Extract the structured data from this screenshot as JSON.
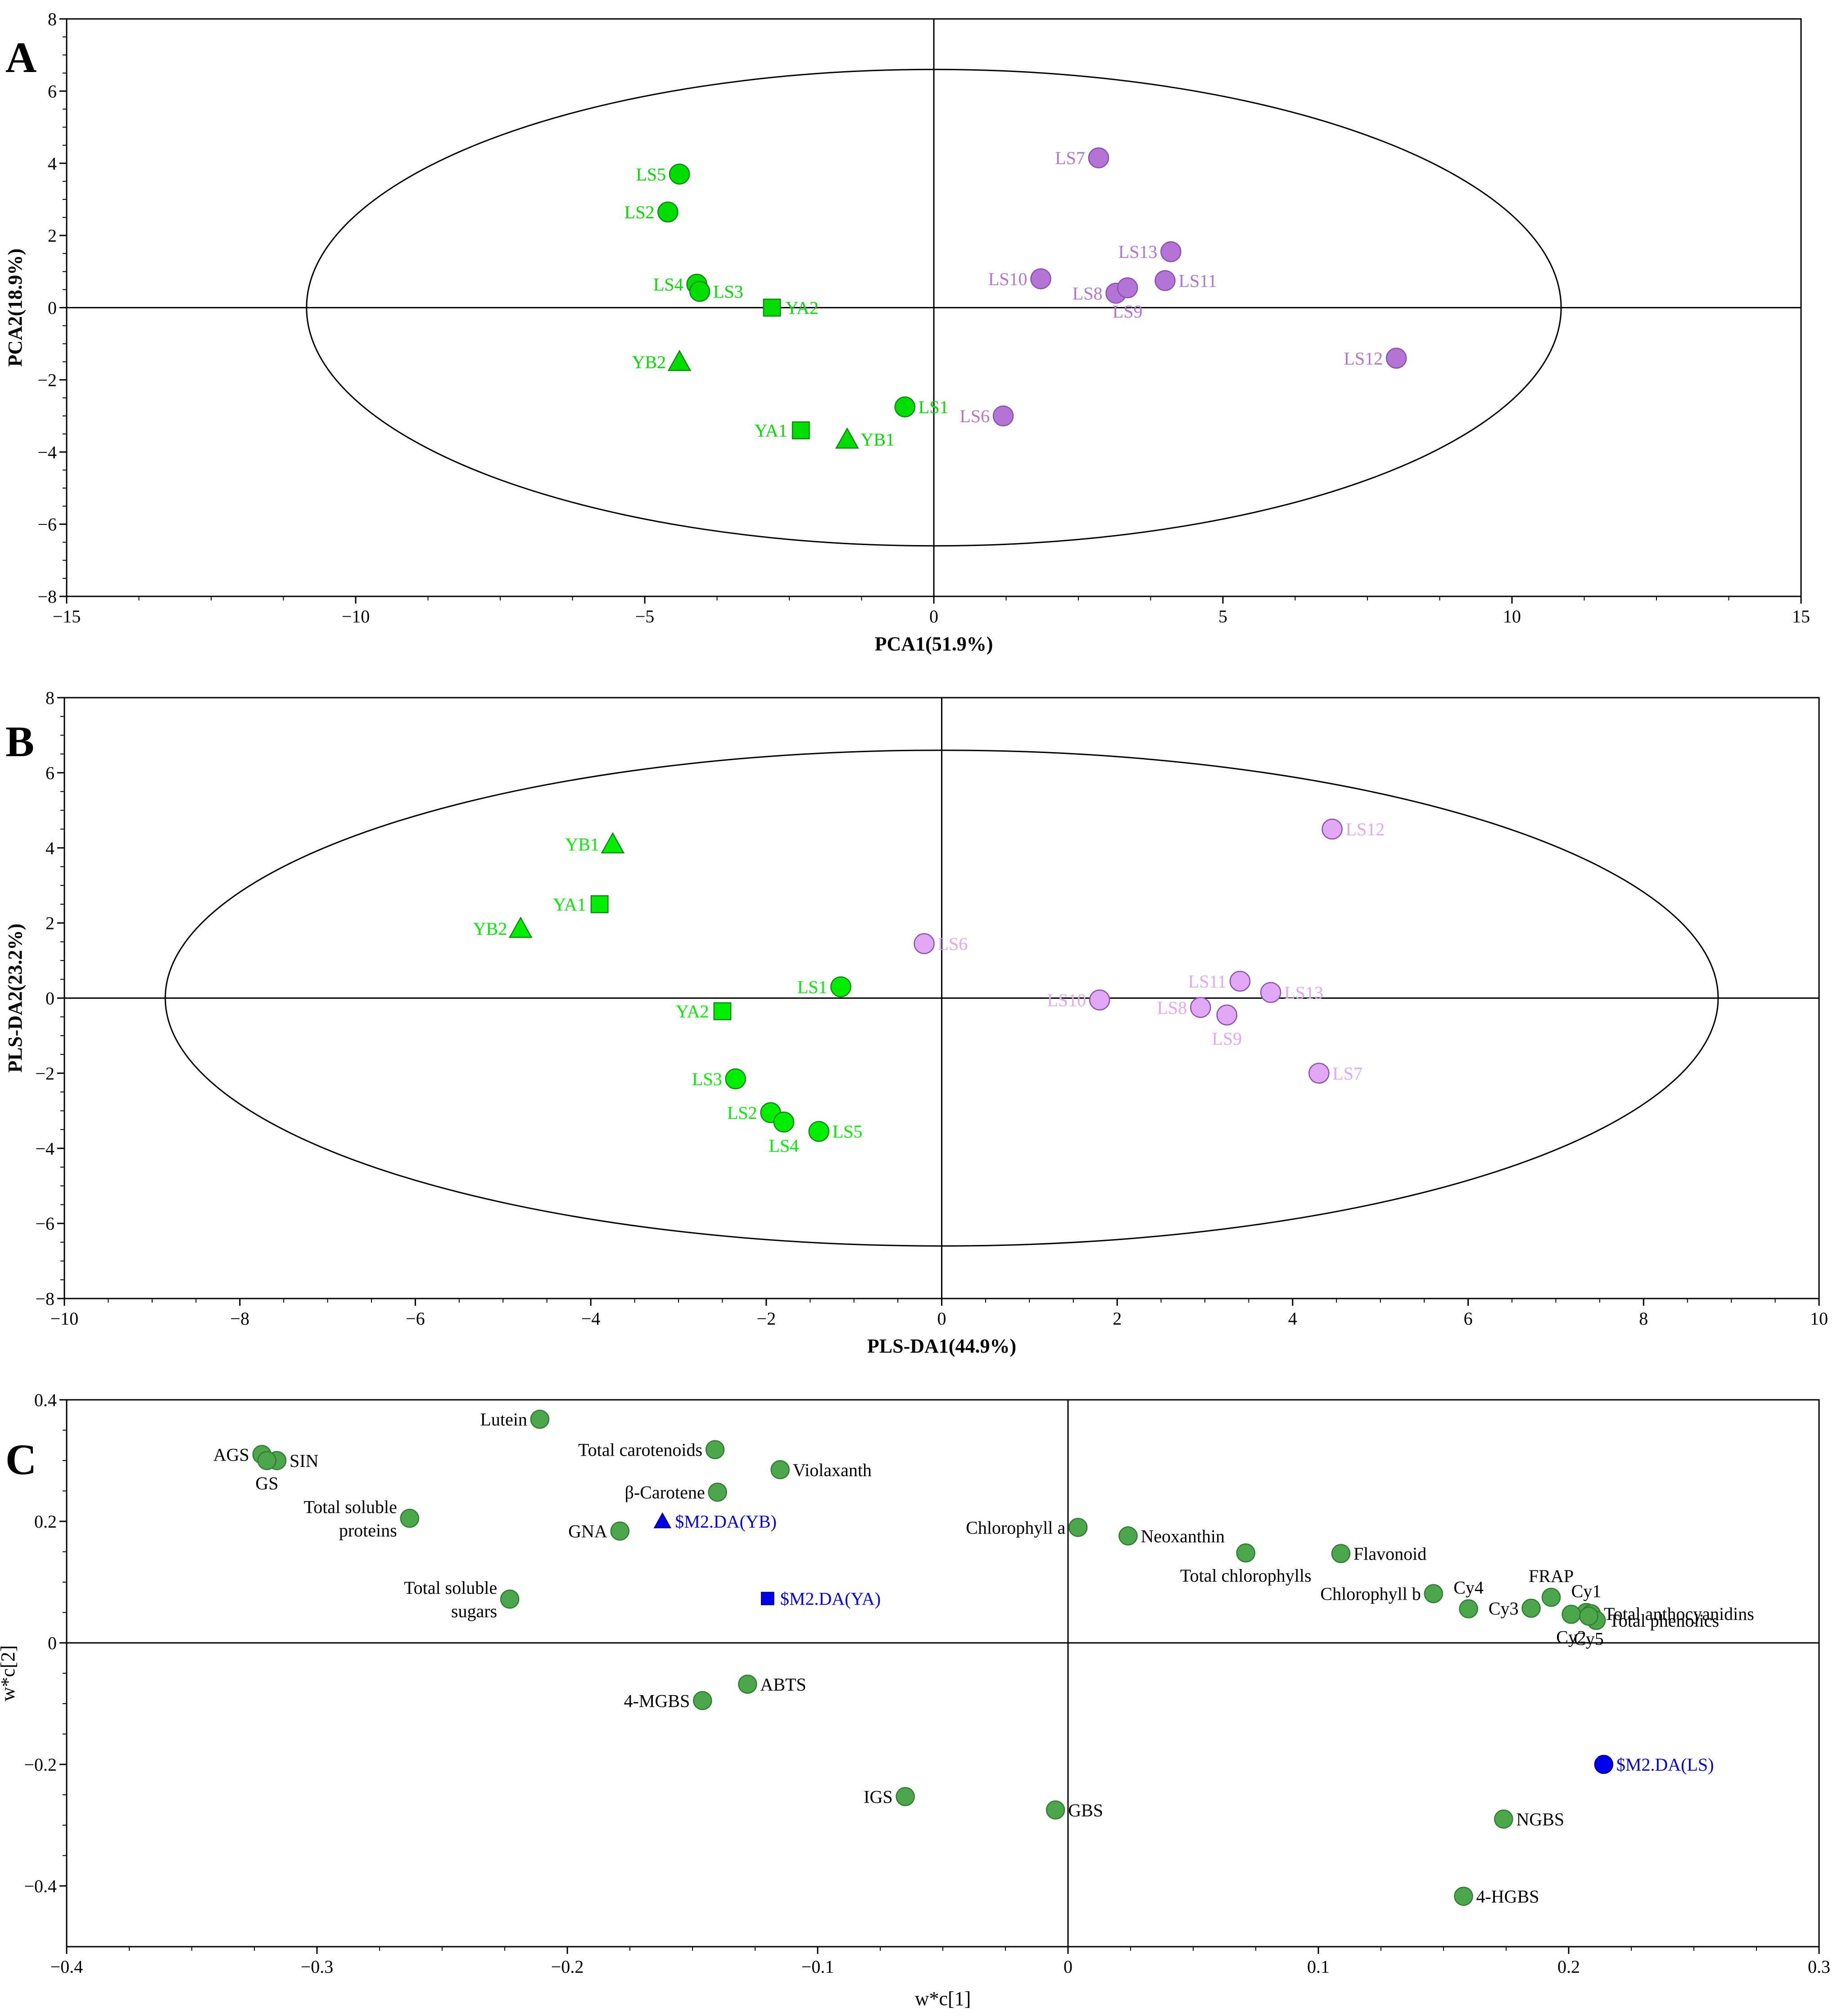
{
  "chart_data": [
    {
      "panel": "A",
      "type": "scatter",
      "xlabel": "PCA1(51.9%)",
      "ylabel": "PCA2(18.9%)",
      "xlim": [
        -15,
        15
      ],
      "ylim": [
        -8,
        8
      ],
      "xticks": [
        -15,
        -10,
        -5,
        0,
        5,
        10,
        15
      ],
      "yticks": [
        -8,
        -6,
        -4,
        -2,
        0,
        2,
        4,
        6,
        8
      ],
      "xtick_labels": [
        "−15",
        "−10",
        "−5",
        "0",
        "5",
        "10",
        "15"
      ],
      "ytick_labels": [
        "−8",
        "−6",
        "−4",
        "−2",
        "0",
        "2",
        "4",
        "6",
        "8"
      ],
      "ellipse": {
        "cx": 0,
        "cy": 0,
        "rx": 10.85,
        "ry": 6.6
      },
      "points": [
        {
          "label": "LS5",
          "x": -4.4,
          "y": 3.7,
          "marker": "circle",
          "color": "#00dd00",
          "label_side": "left"
        },
        {
          "label": "LS2",
          "x": -4.6,
          "y": 2.65,
          "marker": "circle",
          "color": "#00dd00",
          "label_side": "left"
        },
        {
          "label": "LS4",
          "x": -4.1,
          "y": 0.65,
          "marker": "circle",
          "color": "#00dd00",
          "label_side": "left"
        },
        {
          "label": "LS3",
          "x": -4.05,
          "y": 0.45,
          "marker": "circle",
          "color": "#00dd00",
          "label_side": "right"
        },
        {
          "label": "YA2",
          "x": -2.8,
          "y": 0.0,
          "marker": "square",
          "color": "#00dd00",
          "label_side": "right"
        },
        {
          "label": "YB2",
          "x": -4.4,
          "y": -1.5,
          "marker": "triangle",
          "color": "#00dd00",
          "label_side": "left"
        },
        {
          "label": "LS1",
          "x": -0.5,
          "y": -2.75,
          "marker": "circle",
          "color": "#00dd00",
          "label_side": "right"
        },
        {
          "label": "YA1",
          "x": -2.3,
          "y": -3.4,
          "marker": "square",
          "color": "#00dd00",
          "label_side": "left"
        },
        {
          "label": "YB1",
          "x": -1.5,
          "y": -3.65,
          "marker": "triangle",
          "color": "#00dd00",
          "label_side": "right"
        },
        {
          "label": "LS7",
          "x": 2.85,
          "y": 4.15,
          "marker": "circle",
          "color": "#b474d6",
          "label_side": "left"
        },
        {
          "label": "LS13",
          "x": 4.1,
          "y": 1.55,
          "marker": "circle",
          "color": "#b474d6",
          "label_side": "left"
        },
        {
          "label": "LS10",
          "x": 1.85,
          "y": 0.8,
          "marker": "circle",
          "color": "#b474d6",
          "label_side": "left"
        },
        {
          "label": "LS8",
          "x": 3.15,
          "y": 0.4,
          "marker": "circle",
          "color": "#b474d6",
          "label_side": "left"
        },
        {
          "label": "LS9",
          "x": 3.35,
          "y": 0.55,
          "marker": "circle",
          "color": "#b474d6",
          "label_side": "below"
        },
        {
          "label": "LS11",
          "x": 4.0,
          "y": 0.75,
          "marker": "circle",
          "color": "#b474d6",
          "label_side": "right"
        },
        {
          "label": "LS12",
          "x": 8.0,
          "y": -1.4,
          "marker": "circle",
          "color": "#b474d6",
          "label_side": "left"
        },
        {
          "label": "LS6",
          "x": 1.2,
          "y": -3.0,
          "marker": "circle",
          "color": "#b474d6",
          "label_side": "left"
        }
      ]
    },
    {
      "panel": "B",
      "type": "scatter",
      "xlabel": "PLS-DA1(44.9%)",
      "ylabel": "PLS-DA2(23.2%)",
      "xlim": [
        -10,
        10
      ],
      "ylim": [
        -8,
        8
      ],
      "xticks": [
        -10,
        -8,
        -6,
        -4,
        -2,
        0,
        2,
        4,
        6,
        8,
        10
      ],
      "yticks": [
        -8,
        -6,
        -4,
        -2,
        0,
        2,
        4,
        6,
        8
      ],
      "xtick_labels": [
        "−10",
        "−8",
        "−6",
        "−4",
        "−2",
        "0",
        "2",
        "4",
        "6",
        "8",
        "10"
      ],
      "ytick_labels": [
        "−8",
        "−6",
        "−4",
        "−2",
        "0",
        "2",
        "4",
        "6",
        "8"
      ],
      "ellipse": {
        "cx": 0,
        "cy": 0,
        "rx": 8.85,
        "ry": 6.6
      },
      "points": [
        {
          "label": "YB1",
          "x": -3.75,
          "y": 4.1,
          "marker": "triangle",
          "color": "#00ee00",
          "label_side": "left"
        },
        {
          "label": "YA1",
          "x": -3.9,
          "y": 2.5,
          "marker": "square",
          "color": "#00ee00",
          "label_side": "left"
        },
        {
          "label": "YB2",
          "x": -4.8,
          "y": 1.85,
          "marker": "triangle",
          "color": "#00ee00",
          "label_side": "left"
        },
        {
          "label": "LS1",
          "x": -1.15,
          "y": 0.3,
          "marker": "circle",
          "color": "#00ee00",
          "label_side": "left"
        },
        {
          "label": "YA2",
          "x": -2.5,
          "y": -0.35,
          "marker": "square",
          "color": "#00ee00",
          "label_side": "left"
        },
        {
          "label": "LS3",
          "x": -2.35,
          "y": -2.15,
          "marker": "circle",
          "color": "#00ee00",
          "label_side": "left"
        },
        {
          "label": "LS2",
          "x": -1.95,
          "y": -3.05,
          "marker": "circle",
          "color": "#00ee00",
          "label_side": "left"
        },
        {
          "label": "LS4",
          "x": -1.8,
          "y": -3.3,
          "marker": "circle",
          "color": "#00ee00",
          "label_side": "below"
        },
        {
          "label": "LS5",
          "x": -1.4,
          "y": -3.55,
          "marker": "circle",
          "color": "#00ee00",
          "label_side": "right"
        },
        {
          "label": "LS12",
          "x": 4.45,
          "y": 4.5,
          "marker": "circle",
          "color": "#e0a8f5",
          "label_side": "right"
        },
        {
          "label": "LS6",
          "x": -0.2,
          "y": 1.45,
          "marker": "circle",
          "color": "#e0a8f5",
          "label_side": "right"
        },
        {
          "label": "LS10",
          "x": 1.8,
          "y": -0.05,
          "marker": "circle",
          "color": "#e0a8f5",
          "label_side": "left"
        },
        {
          "label": "LS11",
          "x": 3.4,
          "y": 0.45,
          "marker": "circle",
          "color": "#e0a8f5",
          "label_side": "left"
        },
        {
          "label": "LS8",
          "x": 2.95,
          "y": -0.25,
          "marker": "circle",
          "color": "#e0a8f5",
          "label_side": "left"
        },
        {
          "label": "LS9",
          "x": 3.25,
          "y": -0.45,
          "marker": "circle",
          "color": "#e0a8f5",
          "label_side": "below"
        },
        {
          "label": "LS13",
          "x": 3.75,
          "y": 0.15,
          "marker": "circle",
          "color": "#e0a8f5",
          "label_side": "right"
        },
        {
          "label": "LS7",
          "x": 4.3,
          "y": -2.0,
          "marker": "circle",
          "color": "#e0a8f5",
          "label_side": "right"
        }
      ]
    },
    {
      "panel": "C",
      "type": "scatter",
      "xlabel": "w*c[1]",
      "ylabel": "w*c[2]",
      "xlim": [
        -0.4,
        0.3
      ],
      "ylim": [
        -0.5,
        0.4
      ],
      "xticks": [
        -0.4,
        -0.3,
        -0.2,
        -0.1,
        0,
        0.1,
        0.2,
        0.3
      ],
      "yticks": [
        -0.4,
        -0.2,
        0,
        0.2,
        0.4
      ],
      "xtick_labels": [
        "−0.4",
        "−0.3",
        "−0.2",
        "−0.1",
        "0",
        "0.1",
        "0.2",
        "0.3"
      ],
      "ytick_labels": [
        "−0.4",
        "−0.2",
        "0",
        "0.2",
        "0.4"
      ],
      "variable_color": "#4ca64c",
      "class_color": "#0000ee",
      "points": [
        {
          "label": "AGS",
          "x": -0.322,
          "y": 0.31,
          "marker": "circle",
          "label_side": "left"
        },
        {
          "label": "SIN",
          "x": -0.316,
          "y": 0.3,
          "marker": "circle",
          "label_side": "right"
        },
        {
          "label": "GS",
          "x": -0.32,
          "y": 0.3,
          "marker": "circle",
          "label_side": "below"
        },
        {
          "label": "Lutein",
          "x": -0.211,
          "y": 0.368,
          "marker": "circle",
          "label_side": "left"
        },
        {
          "label": "Total carotenoids",
          "x": -0.141,
          "y": 0.318,
          "marker": "circle",
          "label_side": "left"
        },
        {
          "label": "Violaxanth",
          "x": -0.115,
          "y": 0.285,
          "marker": "circle",
          "label_side": "right"
        },
        {
          "label": "β-Carotene",
          "x": -0.14,
          "y": 0.248,
          "marker": "circle",
          "label_side": "left"
        },
        {
          "label": "Total soluble proteins",
          "lines": [
            "Total soluble",
            "proteins"
          ],
          "x": -0.263,
          "y": 0.205,
          "marker": "circle",
          "label_side": "left"
        },
        {
          "label": "GNA",
          "x": -0.179,
          "y": 0.184,
          "marker": "circle",
          "label_side": "left"
        },
        {
          "label": "Total soluble sugars",
          "lines": [
            "Total soluble",
            "sugars"
          ],
          "x": -0.223,
          "y": 0.072,
          "marker": "circle",
          "label_side": "left"
        },
        {
          "label": "ABTS",
          "x": -0.128,
          "y": -0.068,
          "marker": "circle",
          "label_side": "right"
        },
        {
          "label": "4-MGBS",
          "x": -0.146,
          "y": -0.095,
          "marker": "circle",
          "label_side": "left"
        },
        {
          "label": "IGS",
          "x": -0.065,
          "y": -0.253,
          "marker": "circle",
          "label_side": "left"
        },
        {
          "label": "GBS",
          "x": -0.005,
          "y": -0.275,
          "marker": "circle",
          "label_side": "right"
        },
        {
          "label": "Chlorophyll a",
          "x": 0.004,
          "y": 0.19,
          "marker": "circle",
          "label_side": "left"
        },
        {
          "label": "Neoxanthin",
          "x": 0.024,
          "y": 0.176,
          "marker": "circle",
          "label_side": "right"
        },
        {
          "label": "Total chlorophylls",
          "x": 0.071,
          "y": 0.148,
          "marker": "circle",
          "label_side": "below"
        },
        {
          "label": "Flavonoid",
          "x": 0.109,
          "y": 0.147,
          "marker": "circle",
          "label_side": "right"
        },
        {
          "label": "Chlorophyll b",
          "x": 0.146,
          "y": 0.081,
          "marker": "circle",
          "label_side": "left"
        },
        {
          "label": "Cy4",
          "x": 0.16,
          "y": 0.056,
          "marker": "circle",
          "label_side": "above"
        },
        {
          "label": "Cy3",
          "x": 0.185,
          "y": 0.057,
          "marker": "circle",
          "label_side": "left"
        },
        {
          "label": "FRAP",
          "x": 0.193,
          "y": 0.075,
          "marker": "circle",
          "label_side": "above"
        },
        {
          "label": "Cy1",
          "x": 0.207,
          "y": 0.05,
          "marker": "circle",
          "label_side": "above"
        },
        {
          "label": "Total anthocyanidins",
          "x": 0.209,
          "y": 0.048,
          "marker": "circle",
          "label_side": "right"
        },
        {
          "label": "Cy2",
          "x": 0.201,
          "y": 0.047,
          "marker": "circle",
          "label_side": "below"
        },
        {
          "label": "Total phenolics",
          "x": 0.211,
          "y": 0.037,
          "marker": "circle",
          "label_side": "right"
        },
        {
          "label": "Cy5",
          "x": 0.208,
          "y": 0.044,
          "marker": "circle",
          "label_side": "below"
        },
        {
          "label": "NGBS",
          "x": 0.174,
          "y": -0.29,
          "marker": "circle",
          "label_side": "right"
        },
        {
          "label": "4-HGBS",
          "x": 0.158,
          "y": -0.417,
          "marker": "circle",
          "label_side": "right"
        },
        {
          "label": "$M2.DA(YB)",
          "x": -0.162,
          "y": 0.2,
          "marker": "triangle",
          "label_side": "right",
          "is_class": true
        },
        {
          "label": "$M2.DA(YA)",
          "x": -0.12,
          "y": 0.073,
          "marker": "square",
          "label_side": "right",
          "is_class": true
        },
        {
          "label": "$M2.DA(LS)",
          "x": 0.214,
          "y": -0.2,
          "marker": "circle",
          "label_side": "right",
          "is_class": true
        }
      ]
    }
  ]
}
